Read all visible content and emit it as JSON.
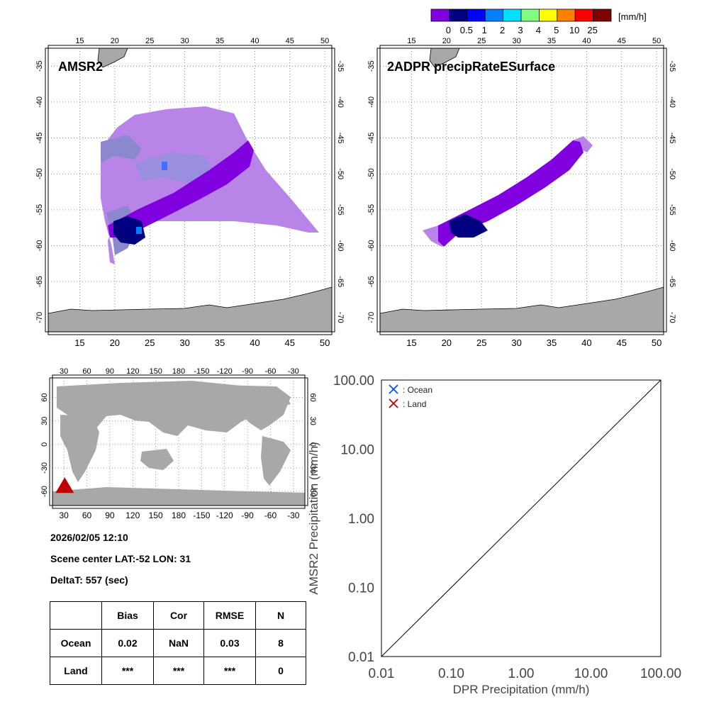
{
  "colorbar": {
    "unit": "[mm/h]",
    "labels": [
      "0",
      "0.5",
      "1",
      "2",
      "3",
      "4",
      "5",
      "10",
      "25"
    ],
    "colors": [
      "#8000e0",
      "#000080",
      "#0000ff",
      "#0080ff",
      "#00e0ff",
      "#80ff80",
      "#ffff00",
      "#ff8000",
      "#ff0000",
      "#800000"
    ]
  },
  "map_left": {
    "title": "AMSR2",
    "lon_ticks": [
      "15",
      "20",
      "25",
      "30",
      "35",
      "40",
      "45",
      "50"
    ],
    "lat_ticks": [
      "-35",
      "-40",
      "-45",
      "-50",
      "-55",
      "-60",
      "-65",
      "-70"
    ]
  },
  "map_right": {
    "title": "2ADPR precipRateESurface",
    "lon_ticks": [
      "15",
      "20",
      "25",
      "30",
      "35",
      "40",
      "45",
      "50"
    ],
    "lat_ticks": [
      "-35",
      "-40",
      "-45",
      "-50",
      "-55",
      "-60",
      "-65",
      "-70"
    ]
  },
  "globe": {
    "lon_ticks": [
      "30",
      "60",
      "90",
      "120",
      "150",
      "180",
      "-150",
      "-120",
      "-90",
      "-60",
      "-30"
    ],
    "lat_ticks": [
      "60",
      "30",
      "0",
      "-30",
      "-60"
    ],
    "marker_color": "#c00000"
  },
  "info": {
    "datetime": "2026/02/05 12:10",
    "scene_center": "Scene center LAT:-52   LON:  31",
    "delta_t": "DeltaT:  557 (sec)"
  },
  "stats": {
    "headers": [
      "",
      "Bias",
      "Cor",
      "RMSE",
      "N"
    ],
    "rows": [
      [
        "Ocean",
        "0.02",
        "NaN",
        "0.03",
        "8"
      ],
      [
        "Land",
        "***",
        "***",
        "***",
        "0"
      ]
    ]
  },
  "chart_data": {
    "type": "scatter",
    "xlabel": "DPR Precipitation (mm/h)",
    "ylabel": "AMSR2 Precipitation (mm/h)",
    "xscale": "log",
    "yscale": "log",
    "xlim": [
      0.01,
      100
    ],
    "ylim": [
      0.01,
      100
    ],
    "x_ticks": [
      "0.01",
      "0.10",
      "1.00",
      "10.00",
      "100.00"
    ],
    "y_ticks": [
      "0.01",
      "0.10",
      "1.00",
      "10.00",
      "100.00"
    ],
    "reference_line": "1:1",
    "legend_position": "top-left",
    "series": [
      {
        "name": ": Ocean",
        "color": "#0050ff",
        "marker": "x",
        "points": []
      },
      {
        "name": ": Land",
        "color": "#c00000",
        "marker": "x",
        "points": []
      }
    ]
  }
}
